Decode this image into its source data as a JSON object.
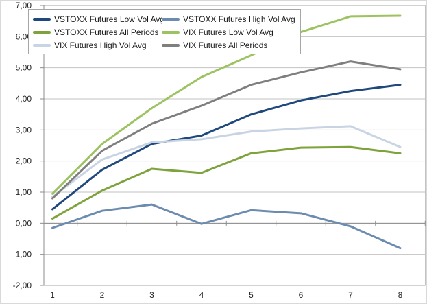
{
  "chart_data": {
    "type": "line",
    "title": "",
    "grid": "horizontal",
    "legend_position": "top-left",
    "categories": [
      "1",
      "2",
      "3",
      "4",
      "5",
      "6",
      "7",
      "8"
    ],
    "x_axis": {
      "labels": [
        "1",
        "2",
        "3",
        "4",
        "5",
        "6",
        "7",
        "8"
      ]
    },
    "y_axis": {
      "min": -2,
      "max": 7,
      "step": 1,
      "tick_labels": [
        "7,00",
        "6,00",
        "5,00",
        "4,00",
        "3,00",
        "2,00",
        "1,00",
        "0,00",
        "-1,00",
        "-2,00"
      ]
    },
    "series": [
      {
        "name": "VSTOXX Futures Low Vol Avg",
        "color": "#1F497D",
        "values": [
          0.45,
          1.72,
          2.55,
          2.82,
          3.5,
          3.95,
          4.25,
          4.45
        ]
      },
      {
        "name": "VSTOXX Futures High Vol Avg",
        "color": "#6C8CAF",
        "values": [
          -0.15,
          0.4,
          0.6,
          -0.02,
          0.42,
          0.32,
          -0.1,
          -0.8
        ]
      },
      {
        "name": "VSTOXX Futures All Periods",
        "color": "#7FA33C",
        "values": [
          0.15,
          1.05,
          1.75,
          1.62,
          2.25,
          2.43,
          2.45,
          2.25
        ]
      },
      {
        "name": "VIX Futures Low Vol Avg",
        "color": "#9CC360",
        "values": [
          0.95,
          2.55,
          3.7,
          4.7,
          5.4,
          6.15,
          6.65,
          6.67
        ]
      },
      {
        "name": "VIX Futures High Vol Avg",
        "color": "#C8D4E4",
        "values": [
          0.85,
          2.05,
          2.6,
          2.7,
          2.95,
          3.05,
          3.12,
          2.45
        ]
      },
      {
        "name": "VIX Futures All Periods",
        "color": "#7F7F7F",
        "values": [
          0.8,
          2.33,
          3.2,
          3.78,
          4.45,
          4.85,
          5.2,
          4.95
        ]
      }
    ],
    "colors": {
      "gridline": "#C2C2C2",
      "plot_border": "#A6A6A6",
      "axis_line": "#8C8C8C",
      "label_text": "#262626"
    }
  }
}
